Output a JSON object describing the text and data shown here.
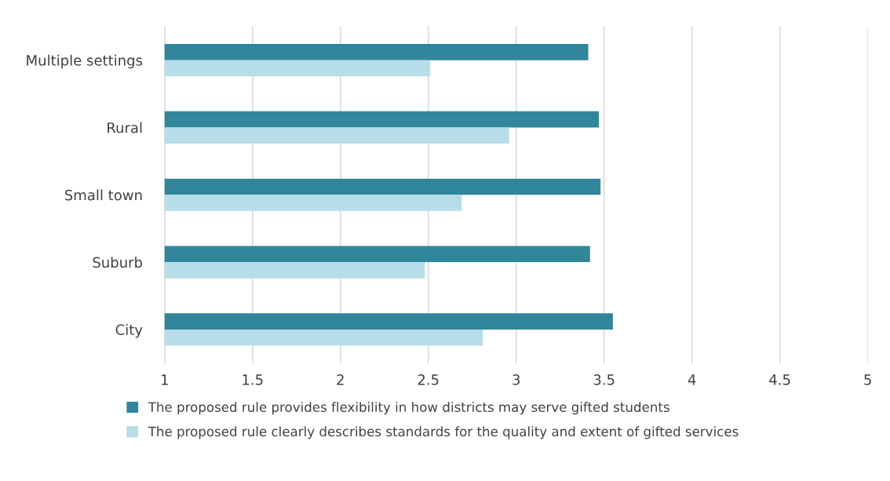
{
  "chart_data": {
    "type": "bar",
    "orientation": "horizontal",
    "categories": [
      "Multiple settings",
      "Rural",
      "Small town",
      "Suburb",
      "City"
    ],
    "series": [
      {
        "name": "The proposed rule provides flexibility in how districts may serve gifted students",
        "color": "#31869b",
        "values": [
          3.41,
          3.47,
          3.48,
          3.42,
          3.55
        ]
      },
      {
        "name": "The proposed rule clearly describes standards for the quality and extent of gifted services",
        "color": "#b7dde8",
        "values": [
          2.51,
          2.96,
          2.69,
          2.48,
          2.81
        ]
      }
    ],
    "xlim": [
      1,
      5
    ],
    "xticks": [
      1,
      1.5,
      2,
      2.5,
      3,
      3.5,
      4,
      4.5,
      5
    ],
    "grid": "x",
    "legend": "bottom"
  }
}
